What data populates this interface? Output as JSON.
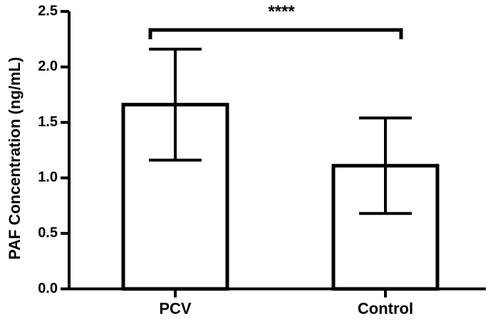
{
  "chart_data": {
    "type": "bar",
    "title": "",
    "xlabel": "",
    "ylabel": "PAF Concentration (ng/mL)",
    "categories": [
      "PCV",
      "Control"
    ],
    "values": [
      1.66,
      1.11
    ],
    "error": [
      0.5,
      0.43
    ],
    "ylim": [
      0,
      2.5
    ],
    "yticks": [
      "0.0",
      "0.5",
      "1.0",
      "1.5",
      "2.0",
      "2.5"
    ],
    "significance": {
      "label": "****",
      "between": [
        "PCV",
        "Control"
      ]
    },
    "grid": false,
    "legend": "none",
    "bar_fill": "#ffffff",
    "stroke_color": "#000000"
  }
}
